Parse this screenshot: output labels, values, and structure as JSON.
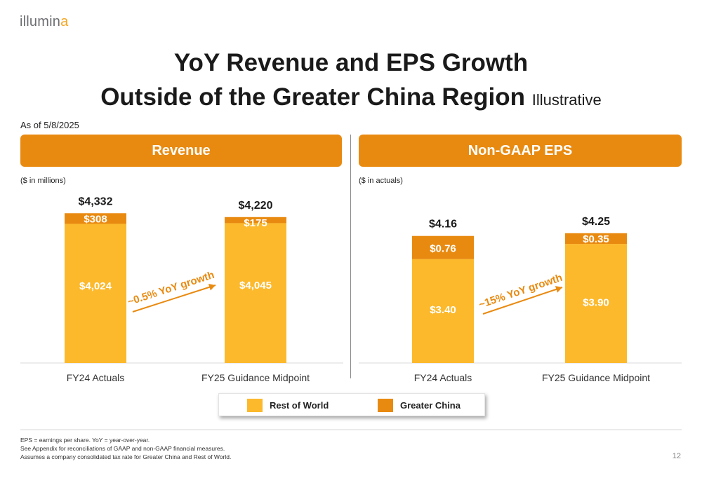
{
  "logo": {
    "text_main": "illumin",
    "text_accent": "a"
  },
  "title": {
    "line1": "YoY Revenue and EPS Growth",
    "line2": "Outside of the Greater China Region",
    "suffix": "Illustrative"
  },
  "as_of": "As of 5/8/2025",
  "colors": {
    "rest_of_world": "#fcb92c",
    "greater_china": "#e98a10",
    "header": "#e98a10"
  },
  "legend": {
    "rest_of_world": "Rest of World",
    "greater_china": "Greater China"
  },
  "footnotes": [
    "EPS = earnings per share. YoY = year-over-year.",
    "See Appendix for reconciliations of GAAP and non-GAAP financial measures.",
    "Assumes a company consolidated tax rate for Greater China and Rest of World."
  ],
  "page_number": "12",
  "chart_data": [
    {
      "type": "bar",
      "stacked": true,
      "title": "Revenue",
      "unit_note": "($ in millions)",
      "categories": [
        "FY24 Actuals",
        "FY25 Guidance Midpoint"
      ],
      "series": [
        {
          "name": "Rest of World",
          "values": [
            4024,
            4045
          ],
          "labels": [
            "$4,024",
            "$4,045"
          ]
        },
        {
          "name": "Greater China",
          "values": [
            308,
            175
          ],
          "labels": [
            "$308",
            "$175"
          ]
        }
      ],
      "totals": [
        4332,
        4220
      ],
      "total_labels": [
        "$4,332",
        "$4,220"
      ],
      "annotation": "~0.5% YoY growth",
      "ylim": [
        0,
        4400
      ]
    },
    {
      "type": "bar",
      "stacked": true,
      "title": "Non-GAAP EPS",
      "unit_note": "($ in actuals)",
      "categories": [
        "FY24 Actuals",
        "FY25 Guidance Midpoint"
      ],
      "series": [
        {
          "name": "Rest of World",
          "values": [
            3.4,
            3.9
          ],
          "labels": [
            "$3.40",
            "$3.90"
          ]
        },
        {
          "name": "Greater China",
          "values": [
            0.76,
            0.35
          ],
          "labels": [
            "$0.76",
            "$0.35"
          ]
        }
      ],
      "totals": [
        4.16,
        4.25
      ],
      "total_labels": [
        "$4.16",
        "$4.25"
      ],
      "annotation": "~15% YoY growth",
      "ylim": [
        0,
        4.5
      ]
    }
  ]
}
